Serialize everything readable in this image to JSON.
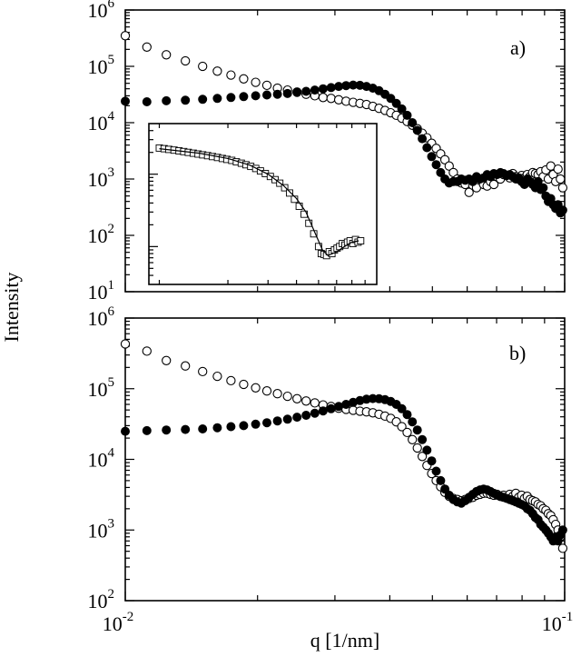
{
  "chart_data": [
    {
      "type": "scatter",
      "panel_label": "a)",
      "ylabel": "Intensity",
      "xlabel": "q [1/nm]",
      "xscale": "log",
      "yscale": "log",
      "xlim": [
        0.01,
        0.1
      ],
      "ylim": [
        10,
        1000000
      ],
      "y_ticks": [
        {
          "base": "10",
          "exp": "1"
        },
        {
          "base": "10",
          "exp": "2"
        },
        {
          "base": "10",
          "exp": "3"
        },
        {
          "base": "10",
          "exp": "4"
        },
        {
          "base": "10",
          "exp": "5"
        },
        {
          "base": "10",
          "exp": "6"
        }
      ],
      "series": [
        {
          "marker": "open-circle",
          "x": [
            0.01,
            0.0112,
            0.0124,
            0.0137,
            0.015,
            0.0162,
            0.0174,
            0.0186,
            0.0198,
            0.021,
            0.0222,
            0.0234,
            0.0246,
            0.0258,
            0.027,
            0.0282,
            0.0294,
            0.0306,
            0.0318,
            0.033,
            0.0342,
            0.0354,
            0.0366,
            0.0378,
            0.039,
            0.0402,
            0.0414,
            0.0426,
            0.0438,
            0.045,
            0.0462,
            0.0474,
            0.0486,
            0.0498,
            0.051,
            0.0522,
            0.0534,
            0.0546,
            0.0558,
            0.057,
            0.0582,
            0.0594,
            0.0606,
            0.0618,
            0.063,
            0.0642,
            0.0654,
            0.0666,
            0.0678,
            0.069,
            0.0702,
            0.0714,
            0.0726,
            0.0738,
            0.075,
            0.0762,
            0.0774,
            0.0786,
            0.0798,
            0.081,
            0.0822,
            0.0834,
            0.0846,
            0.0858,
            0.087,
            0.0882,
            0.0894,
            0.0906,
            0.0918,
            0.093,
            0.0942,
            0.0954,
            0.0966,
            0.0978,
            0.099
          ],
          "y": [
            350000,
            220000,
            160000,
            125000,
            100000,
            82000,
            70000,
            60000,
            52000,
            46000,
            41000,
            38000,
            35000,
            32000,
            30000,
            28000,
            27000,
            25500,
            24000,
            23000,
            22000,
            21000,
            19500,
            18000,
            16500,
            15000,
            13500,
            12000,
            10500,
            9000,
            7800,
            6500,
            5400,
            4300,
            3500,
            2800,
            2200,
            1700,
            1300,
            1000,
            850,
            800,
            580,
            780,
            700,
            1000,
            800,
            750,
            900,
            800,
            1100,
            1000,
            1200,
            1150,
            1050,
            1250,
            1100,
            1000,
            1150,
            1050,
            1200,
            1100,
            1300,
            1250,
            1200,
            1350,
            1100,
            1450,
            1000,
            1700,
            1200,
            900,
            1500,
            1000,
            700
          ]
        },
        {
          "marker": "filled-circle",
          "x": [
            0.01,
            0.0112,
            0.0124,
            0.0137,
            0.015,
            0.0162,
            0.0174,
            0.0186,
            0.0198,
            0.021,
            0.0222,
            0.0234,
            0.0246,
            0.0258,
            0.027,
            0.0282,
            0.0294,
            0.0306,
            0.0318,
            0.033,
            0.0342,
            0.0354,
            0.0366,
            0.0378,
            0.039,
            0.0402,
            0.0414,
            0.0426,
            0.0438,
            0.045,
            0.0462,
            0.0474,
            0.0486,
            0.0498,
            0.051,
            0.0522,
            0.0534,
            0.0546,
            0.0558,
            0.057,
            0.0582,
            0.0594,
            0.0606,
            0.0618,
            0.063,
            0.0642,
            0.0654,
            0.0666,
            0.0678,
            0.069,
            0.0702,
            0.0714,
            0.0726,
            0.0738,
            0.075,
            0.0762,
            0.0774,
            0.0786,
            0.0798,
            0.081,
            0.0822,
            0.0834,
            0.0846,
            0.0858,
            0.087,
            0.0882,
            0.0894,
            0.0906,
            0.0918,
            0.093,
            0.0942,
            0.0954,
            0.0966,
            0.0978,
            0.099
          ],
          "y": [
            24000,
            23500,
            24500,
            25000,
            26000,
            27000,
            28000,
            29000,
            30000,
            31000,
            32000,
            33000,
            34500,
            36000,
            38000,
            40000,
            42000,
            44000,
            45500,
            46500,
            46000,
            44000,
            41000,
            37000,
            32000,
            27000,
            22000,
            17500,
            13500,
            10000,
            7300,
            5200,
            3600,
            2500,
            1800,
            1300,
            1000,
            850,
            900,
            900,
            1000,
            950,
            1000,
            900,
            1100,
            1000,
            1050,
            1200,
            1100,
            1250,
            1200,
            1300,
            1250,
            1150,
            1200,
            1100,
            1000,
            1050,
            900,
            800,
            1000,
            900,
            800,
            700,
            900,
            650,
            700,
            500,
            400,
            450,
            350,
            300,
            350,
            250,
            280
          ]
        }
      ],
      "inset": {
        "type": "scatter",
        "marker": "open-square",
        "x": [
          0.01,
          0.0105,
          0.011,
          0.0116,
          0.0122,
          0.0128,
          0.0134,
          0.0141,
          0.0148,
          0.0155,
          0.0163,
          0.0171,
          0.018,
          0.0189,
          0.0198,
          0.0208,
          0.0218,
          0.0229,
          0.024,
          0.0252,
          0.0265,
          0.0278,
          0.0292,
          0.0307,
          0.0322,
          0.0338,
          0.0355,
          0.0373,
          0.0392,
          0.0411,
          0.0432,
          0.0453,
          0.0476,
          0.05,
          0.0514,
          0.0528,
          0.0542,
          0.0557,
          0.0572,
          0.0587,
          0.0603,
          0.0619,
          0.0636,
          0.0653,
          0.067,
          0.0688,
          0.0707,
          0.0726,
          0.0745,
          0.0765
        ],
        "y": [
          2300,
          2250,
          2200,
          2150,
          2100,
          2050,
          2000,
          1950,
          1900,
          1850,
          1800,
          1750,
          1700,
          1650,
          1600,
          1550,
          1480,
          1420,
          1350,
          1280,
          1200,
          1110,
          1020,
          930,
          840,
          750,
          650,
          550,
          450,
          360,
          280,
          210,
          150,
          100,
          80,
          78,
          75,
          85,
          80,
          90,
          95,
          100,
          110,
          105,
          115,
          120,
          110,
          125,
          115,
          120
        ],
        "fit_line": {
          "x": [
            0.01,
            0.015,
            0.02,
            0.025,
            0.03,
            0.035,
            0.04,
            0.044,
            0.048,
            0.052,
            0.055,
            0.06,
            0.065,
            0.07,
            0.075
          ],
          "y": [
            2250,
            1950,
            1650,
            1330,
            1000,
            700,
            460,
            300,
            160,
            90,
            75,
            85,
            100,
            115,
            120
          ]
        }
      }
    },
    {
      "type": "scatter",
      "panel_label": "b)",
      "xlabel": "q [1/nm]",
      "xscale": "log",
      "yscale": "log",
      "xlim": [
        0.01,
        0.1
      ],
      "ylim": [
        100,
        1000000
      ],
      "x_ticks": [
        {
          "base": "10",
          "exp": "-2"
        },
        {
          "base": "10",
          "exp": "-1"
        }
      ],
      "y_ticks": [
        {
          "base": "10",
          "exp": "2"
        },
        {
          "base": "10",
          "exp": "3"
        },
        {
          "base": "10",
          "exp": "4"
        },
        {
          "base": "10",
          "exp": "5"
        },
        {
          "base": "10",
          "exp": "6"
        }
      ],
      "series": [
        {
          "marker": "open-circle",
          "x": [
            0.01,
            0.0112,
            0.0124,
            0.0137,
            0.015,
            0.0162,
            0.0174,
            0.0186,
            0.0198,
            0.021,
            0.0222,
            0.0234,
            0.0246,
            0.0258,
            0.027,
            0.0282,
            0.0294,
            0.0306,
            0.0318,
            0.033,
            0.0342,
            0.0354,
            0.0366,
            0.0378,
            0.039,
            0.0402,
            0.0414,
            0.0426,
            0.0438,
            0.045,
            0.0462,
            0.0474,
            0.0486,
            0.0498,
            0.051,
            0.0522,
            0.0534,
            0.0546,
            0.0558,
            0.057,
            0.0582,
            0.0594,
            0.0606,
            0.0618,
            0.063,
            0.0642,
            0.0654,
            0.0666,
            0.0678,
            0.069,
            0.0702,
            0.0714,
            0.0726,
            0.0738,
            0.075,
            0.0762,
            0.0774,
            0.0786,
            0.0798,
            0.081,
            0.0822,
            0.0834,
            0.0846,
            0.0858,
            0.087,
            0.0882,
            0.0894,
            0.0906,
            0.0918,
            0.093,
            0.0942,
            0.0954,
            0.0966,
            0.0978,
            0.099
          ],
          "y": [
            430000,
            340000,
            250000,
            210000,
            175000,
            150000,
            130000,
            115000,
            103000,
            93000,
            85000,
            78000,
            72000,
            67000,
            63000,
            59000,
            56000,
            53000,
            51000,
            49500,
            48000,
            47000,
            45500,
            43500,
            41000,
            38000,
            34000,
            29000,
            24000,
            19000,
            14500,
            11000,
            8200,
            6300,
            5000,
            4100,
            3400,
            3000,
            2800,
            2700,
            2600,
            2700,
            2800,
            2900,
            3100,
            3200,
            3300,
            3300,
            3200,
            3100,
            3200,
            3000,
            3100,
            2900,
            3200,
            3000,
            3300,
            2900,
            3100,
            2800,
            3000,
            2700,
            2600,
            2500,
            2300,
            2200,
            2000,
            1900,
            1700,
            1600,
            1400,
            1200,
            1000,
            800,
            550
          ]
        },
        {
          "marker": "filled-circle",
          "x": [
            0.01,
            0.0112,
            0.0124,
            0.0137,
            0.015,
            0.0162,
            0.0174,
            0.0186,
            0.0198,
            0.021,
            0.0222,
            0.0234,
            0.0246,
            0.0258,
            0.027,
            0.0282,
            0.0294,
            0.0306,
            0.0318,
            0.033,
            0.0342,
            0.0354,
            0.0366,
            0.0378,
            0.039,
            0.0402,
            0.0414,
            0.0426,
            0.0438,
            0.045,
            0.0462,
            0.0474,
            0.0486,
            0.0498,
            0.051,
            0.0522,
            0.0534,
            0.0546,
            0.0558,
            0.057,
            0.0582,
            0.0594,
            0.0606,
            0.0618,
            0.063,
            0.0642,
            0.0654,
            0.0666,
            0.0678,
            0.069,
            0.0702,
            0.0714,
            0.0726,
            0.0738,
            0.075,
            0.0762,
            0.0774,
            0.0786,
            0.0798,
            0.081,
            0.0822,
            0.0834,
            0.0846,
            0.0858,
            0.087,
            0.0882,
            0.0894,
            0.0906,
            0.0918,
            0.093,
            0.0942,
            0.0954,
            0.0966,
            0.0978,
            0.099
          ],
          "y": [
            25000,
            25500,
            26000,
            26500,
            27000,
            28000,
            29000,
            30000,
            31500,
            33000,
            35000,
            37000,
            39500,
            42000,
            45000,
            48500,
            52000,
            56000,
            60000,
            64000,
            68000,
            71000,
            72500,
            72000,
            70000,
            66000,
            60000,
            52000,
            43000,
            34000,
            26000,
            19000,
            13500,
            9500,
            6800,
            5000,
            3800,
            3100,
            2700,
            2500,
            2400,
            2600,
            2900,
            3200,
            3500,
            3700,
            3800,
            3700,
            3500,
            3300,
            3100,
            3000,
            2900,
            2800,
            2700,
            2600,
            2500,
            2400,
            2300,
            2200,
            2000,
            1900,
            1700,
            1500,
            1400,
            1200,
            1100,
            1000,
            900,
            800,
            700,
            800,
            700,
            850,
            1000
          ]
        }
      ]
    }
  ]
}
